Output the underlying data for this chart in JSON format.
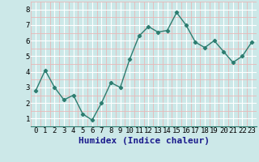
{
  "x": [
    0,
    1,
    2,
    3,
    4,
    5,
    6,
    7,
    8,
    9,
    10,
    11,
    12,
    13,
    14,
    15,
    16,
    17,
    18,
    19,
    20,
    21,
    22,
    23
  ],
  "y": [
    2.8,
    4.1,
    3.0,
    2.2,
    2.5,
    1.3,
    0.9,
    2.0,
    3.3,
    3.0,
    4.8,
    6.3,
    6.9,
    6.55,
    6.65,
    7.8,
    7.0,
    5.9,
    5.55,
    6.0,
    5.3,
    4.6,
    5.0,
    5.9
  ],
  "line_color": "#2d7d70",
  "marker_color": "#2d7d70",
  "bg_color": "#cce8e8",
  "grid_major_color": "#ffffff",
  "grid_minor_color": "#e8b8b8",
  "xlabel": "Humidex (Indice chaleur)",
  "xlabel_color": "#1a1a8c",
  "xlabel_fontsize": 8,
  "ylim": [
    0.5,
    8.5
  ],
  "xlim": [
    -0.5,
    23.5
  ],
  "yticks": [
    1,
    2,
    3,
    4,
    5,
    6,
    7,
    8
  ],
  "xticks": [
    0,
    1,
    2,
    3,
    4,
    5,
    6,
    7,
    8,
    9,
    10,
    11,
    12,
    13,
    14,
    15,
    16,
    17,
    18,
    19,
    20,
    21,
    22,
    23
  ],
  "tick_fontsize": 6.5,
  "linewidth": 1.0,
  "markersize": 2.2
}
